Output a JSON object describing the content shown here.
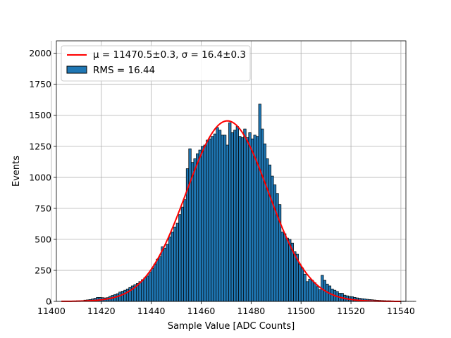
{
  "chart_data": {
    "type": "bar",
    "xlabel": "Sample Value [ADC Counts]",
    "ylabel": "Events",
    "xlim": [
      11402,
      11542
    ],
    "ylim": [
      0,
      2100
    ],
    "xticks": [
      "11400",
      "11420",
      "11440",
      "11460",
      "11480",
      "11500",
      "11520",
      "11540"
    ],
    "yticks": [
      "0",
      "250",
      "500",
      "750",
      "1000",
      "1250",
      "1500",
      "1750",
      "2000"
    ],
    "grid": true,
    "legend_position": "top-left",
    "legend": {
      "fit_label": "μ = 11470.5±0.3, σ = 16.4±0.3",
      "hist_label": "RMS = 16.44"
    },
    "histogram": {
      "bin_width": 1,
      "start": 11404,
      "counts": [
        1,
        2,
        2,
        3,
        3,
        4,
        5,
        6,
        7,
        10,
        12,
        15,
        20,
        25,
        32,
        32,
        30,
        28,
        30,
        40,
        48,
        55,
        62,
        75,
        82,
        90,
        100,
        112,
        125,
        135,
        145,
        160,
        175,
        190,
        205,
        235,
        265,
        300,
        340,
        360,
        440,
        430,
        460,
        520,
        560,
        600,
        630,
        700,
        760,
        820,
        1070,
        1230,
        1120,
        1150,
        1190,
        1220,
        1250,
        1260,
        1300,
        1310,
        1330,
        1350,
        1400,
        1380,
        1340,
        1340,
        1260,
        1440,
        1360,
        1380,
        1410,
        1330,
        1320,
        1390,
        1320,
        1360,
        1310,
        1340,
        1330,
        1590,
        1390,
        1270,
        1150,
        1100,
        1010,
        940,
        870,
        780,
        560,
        545,
        510,
        500,
        470,
        400,
        380,
        300,
        270,
        220,
        160,
        180,
        170,
        150,
        120,
        95,
        210,
        170,
        140,
        125,
        100,
        90,
        80,
        65,
        65,
        50,
        45,
        40,
        38,
        32,
        28,
        25,
        22,
        20,
        17,
        15,
        13,
        11,
        9,
        8,
        7,
        6,
        5,
        5,
        4,
        3,
        3,
        2,
        2,
        2,
        1,
        1,
        1,
        1
      ],
      "fill_color": "#1f77b4",
      "edge_color": "#000000"
    },
    "fit": {
      "type": "gaussian",
      "mu": 11470.5,
      "sigma": 16.4,
      "amplitude": 1455,
      "x_range": [
        11404,
        11540
      ],
      "color": "#ff0000"
    }
  }
}
